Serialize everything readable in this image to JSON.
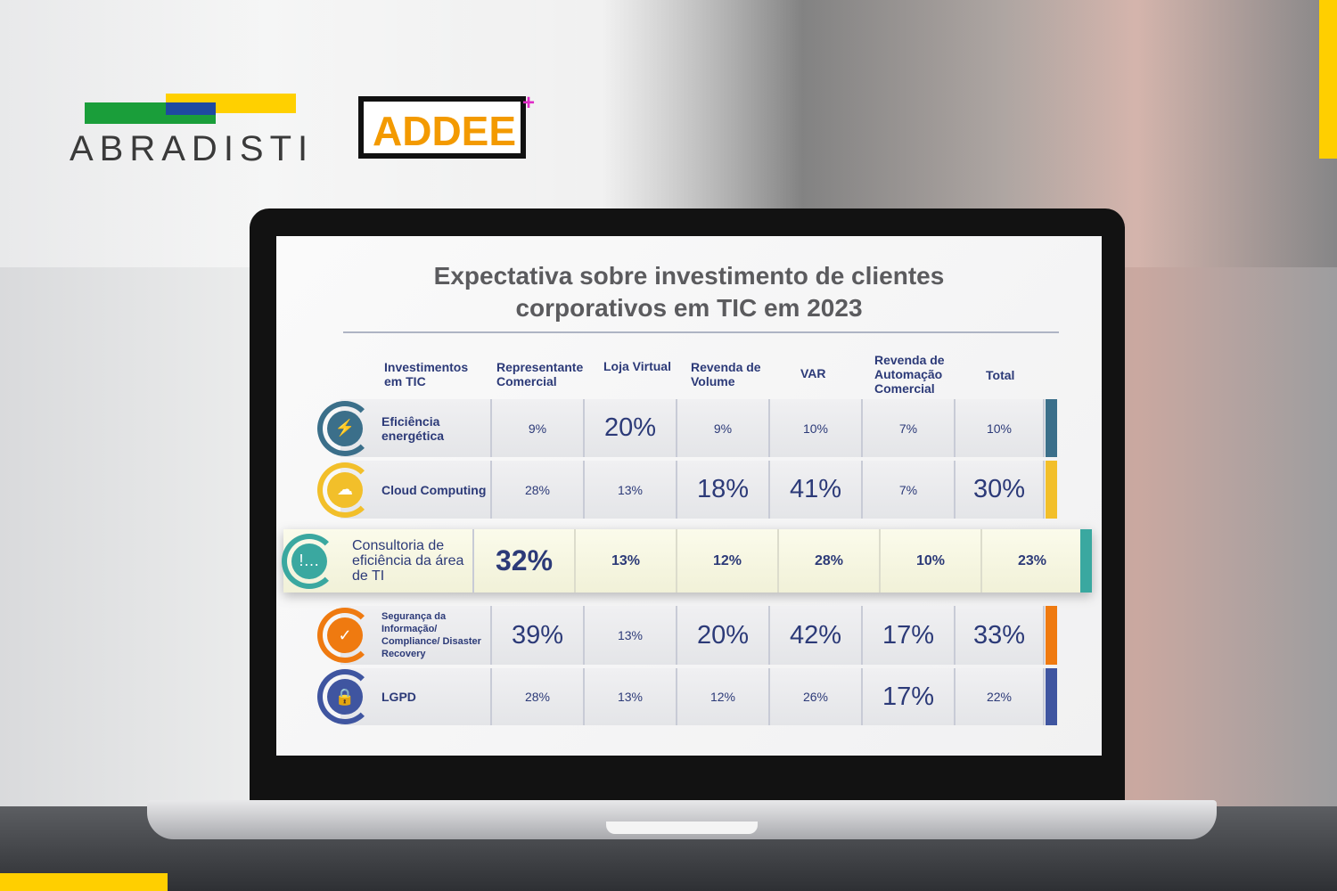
{
  "logos": {
    "abradisti": "ABRADISTI",
    "addee": "ADDEE"
  },
  "chart_data": {
    "type": "table",
    "title": "Expectativa sobre investimento de clientes corporativos em TIC em 2023",
    "title_lines": [
      "Expectativa sobre investimento de clientes",
      "corporativos em TIC em 2023"
    ],
    "columns": [
      "Investimentos em TIC",
      "Representante Comercial",
      "Loja Virtual",
      "Revenda de Volume",
      "VAR",
      "Revenda de Automação Comercial",
      "Total"
    ],
    "rows": [
      {
        "label": "Eficiência energética",
        "icon": "lightning-icon",
        "color": "#3b6f8a",
        "values": [
          "9%",
          "20%",
          "9%",
          "10%",
          "7%",
          "10%"
        ],
        "emphasis": [
          false,
          true,
          false,
          false,
          false,
          false
        ]
      },
      {
        "label": "Cloud Computing",
        "icon": "cloud-icon",
        "color": "#f2bf2a",
        "values": [
          "28%",
          "13%",
          "18%",
          "41%",
          "7%",
          "30%"
        ],
        "emphasis": [
          false,
          false,
          true,
          true,
          false,
          true
        ]
      },
      {
        "label": "Consultoria de eficiência da área de TI",
        "icon": "chat-alert-icon",
        "color": "#3aa8a0",
        "highlighted": true,
        "values": [
          "32%",
          "13%",
          "12%",
          "28%",
          "10%",
          "23%"
        ],
        "emphasis": [
          true,
          false,
          false,
          false,
          false,
          false
        ]
      },
      {
        "label": "Segurança da Informação/ Compliance/ Disaster Recovery",
        "icon": "shield-check-icon",
        "color": "#ef7a10",
        "values": [
          "39%",
          "13%",
          "20%",
          "42%",
          "17%",
          "33%"
        ],
        "emphasis": [
          true,
          false,
          true,
          true,
          true,
          true
        ]
      },
      {
        "label": "LGPD",
        "icon": "lock-icon",
        "color": "#3f55a0",
        "values": [
          "28%",
          "13%",
          "12%",
          "26%",
          "17%",
          "22%"
        ],
        "emphasis": [
          false,
          false,
          false,
          false,
          true,
          false
        ]
      }
    ]
  }
}
